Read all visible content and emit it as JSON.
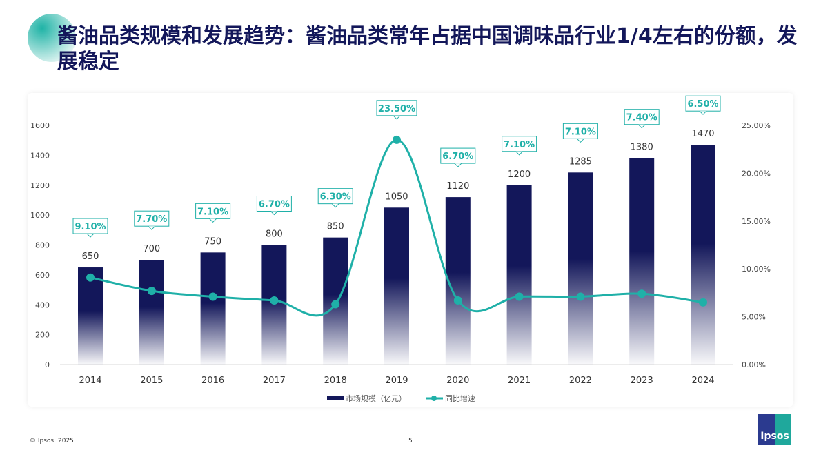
{
  "title": "酱油品类规模和发展趋势：酱油品类常年占据中国调味品行业1/4左右的份额，发展稳定",
  "footer": {
    "copyright": "© Ipsos| 2025",
    "page": "5",
    "logo": "Ipsos"
  },
  "colors": {
    "bar": "#13175a",
    "line": "#1fb0a8",
    "title": "#13175a"
  },
  "chart_data": {
    "type": "bar+line",
    "categories": [
      "2014",
      "2015",
      "2016",
      "2017",
      "2018",
      "2019",
      "2020",
      "2021",
      "2022",
      "2023",
      "2024"
    ],
    "series": [
      {
        "name": "市场规模（亿元）",
        "type": "bar",
        "axis": "left",
        "values": [
          650,
          700,
          750,
          800,
          850,
          1050,
          1120,
          1200,
          1285,
          1380,
          1470
        ]
      },
      {
        "name": "同比增速",
        "type": "line",
        "axis": "right",
        "values": [
          9.1,
          7.7,
          7.1,
          6.7,
          6.3,
          23.5,
          6.7,
          7.1,
          7.1,
          7.4,
          6.5
        ],
        "labels": [
          "9.10%",
          "7.70%",
          "7.10%",
          "6.70%",
          "6.30%",
          "23.50%",
          "6.70%",
          "7.10%",
          "7.10%",
          "7.40%",
          "6.50%"
        ]
      }
    ],
    "ylim": [
      0,
      1600
    ],
    "yticks": [
      "0",
      "200",
      "400",
      "600",
      "800",
      "1000",
      "1200",
      "1400",
      "1600"
    ],
    "y2lim": [
      0,
      25
    ],
    "y2ticks": [
      "0.00%",
      "5.00%",
      "10.00%",
      "15.00%",
      "20.00%",
      "25.00%"
    ],
    "legend": "bottom",
    "grid": false
  }
}
